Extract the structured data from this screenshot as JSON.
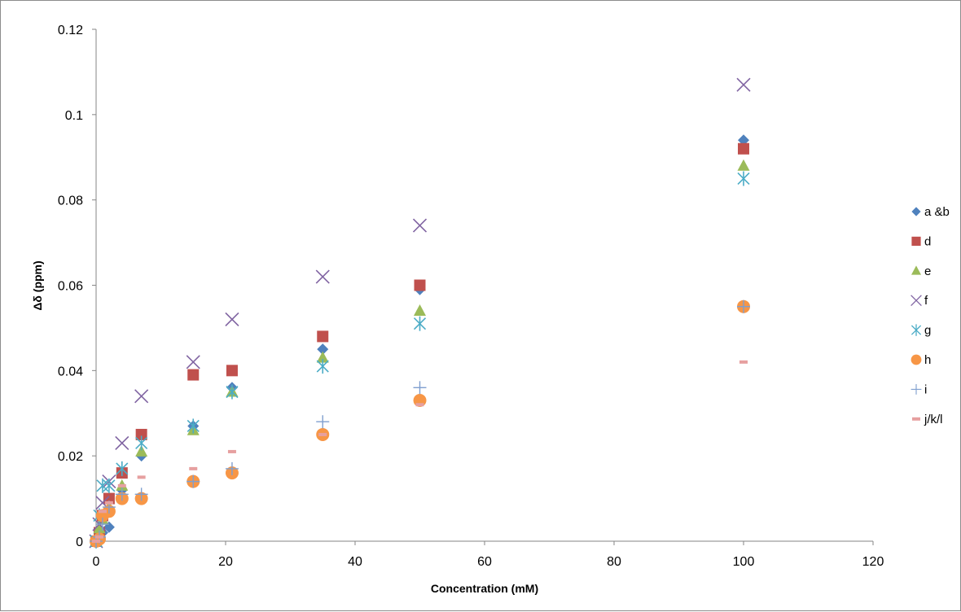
{
  "chart_data": {
    "type": "scatter",
    "title": "",
    "xlabel": "Concentration (mM)",
    "ylabel": "Δδ (ppm)",
    "xlim": [
      0,
      120
    ],
    "ylim": [
      0,
      0.12
    ],
    "xticks": [
      0,
      20,
      40,
      60,
      80,
      100,
      120
    ],
    "yticks": [
      0,
      0.02,
      0.04,
      0.06,
      0.08,
      0.1,
      0.12
    ],
    "xtick_labels": [
      "0",
      "20",
      "40",
      "60",
      "80",
      "100",
      "120"
    ],
    "ytick_labels": [
      "0",
      "0.02",
      "0.04",
      "0.06",
      "0.08",
      "0.1",
      "0.12"
    ],
    "grid": false,
    "legend_position": "right",
    "series": [
      {
        "name": "a &b",
        "marker": "diamond",
        "color": "#4F81BD",
        "x": [
          0,
          0.5,
          1,
          2,
          4,
          7,
          15,
          21,
          35,
          50,
          100
        ],
        "y": [
          0,
          0.0005,
          0.002,
          0.0033,
          0.012,
          0.02,
          0.027,
          0.036,
          0.045,
          0.059,
          0.094
        ]
      },
      {
        "name": "d",
        "marker": "square",
        "color": "#C0504D",
        "x": [
          0,
          0.5,
          1,
          2,
          4,
          7,
          15,
          21,
          35,
          50,
          100
        ],
        "y": [
          0,
          0.002,
          0.006,
          0.01,
          0.016,
          0.025,
          0.039,
          0.04,
          0.048,
          0.06,
          0.092
        ]
      },
      {
        "name": "e",
        "marker": "triangle",
        "color": "#9BBB59",
        "x": [
          0,
          0.5,
          1,
          2,
          4,
          7,
          15,
          21,
          35,
          50,
          100
        ],
        "y": [
          0,
          0.003,
          0.005,
          0.008,
          0.013,
          0.021,
          0.026,
          0.035,
          0.043,
          0.054,
          0.088
        ]
      },
      {
        "name": "f",
        "marker": "x",
        "color": "#8064A2",
        "x": [
          0,
          0.5,
          1,
          2,
          4,
          7,
          15,
          21,
          35,
          50,
          100
        ],
        "y": [
          0,
          0.004,
          0.009,
          0.014,
          0.023,
          0.034,
          0.042,
          0.052,
          0.062,
          0.074,
          0.107
        ]
      },
      {
        "name": "g",
        "marker": "star",
        "color": "#4BACC6",
        "x": [
          0,
          0.5,
          1,
          2,
          4,
          7,
          15,
          21,
          35,
          50,
          100
        ],
        "y": [
          0,
          0.006,
          0.013,
          0.013,
          0.017,
          0.023,
          0.027,
          0.035,
          0.041,
          0.051,
          0.085
        ]
      },
      {
        "name": "h",
        "marker": "circle",
        "color": "#F79646",
        "x": [
          0,
          0.5,
          1,
          2,
          4,
          7,
          15,
          21,
          35,
          50,
          100
        ],
        "y": [
          0,
          0.0005,
          0.006,
          0.007,
          0.01,
          0.01,
          0.014,
          0.016,
          0.025,
          0.033,
          0.055
        ]
      },
      {
        "name": "i",
        "marker": "plus",
        "color": "#7F9FCF",
        "x": [
          0,
          0.5,
          1,
          2,
          4,
          7,
          15,
          21,
          35,
          50,
          100
        ],
        "y": [
          0,
          0.001,
          0.004,
          0.008,
          0.011,
          0.011,
          0.014,
          0.017,
          0.028,
          0.036,
          0.055
        ]
      },
      {
        "name": "j/k/l",
        "marker": "dash",
        "color": "#E6A0A0",
        "x": [
          0,
          0.5,
          1,
          2,
          4,
          7,
          15,
          21,
          35,
          50,
          100
        ],
        "y": [
          0,
          0.001,
          0.007,
          0.009,
          0.013,
          0.015,
          0.017,
          0.021,
          0.025,
          0.032,
          0.042
        ]
      }
    ]
  }
}
